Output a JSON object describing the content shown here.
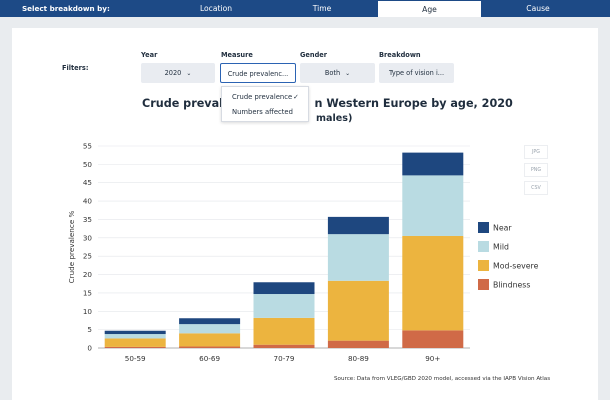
{
  "topbar": {
    "label": "Select breakdown by:",
    "tabs": [
      {
        "label": "Location",
        "active": false
      },
      {
        "label": "Time",
        "active": false
      },
      {
        "label": "Age",
        "active": true
      },
      {
        "label": "Cause",
        "active": false
      }
    ]
  },
  "filters": {
    "label": "Filters:",
    "year": {
      "label": "Year",
      "value": "2020"
    },
    "measure": {
      "label": "Measure",
      "value": "Crude prevalenc..."
    },
    "gender": {
      "label": "Gender",
      "value": "Both"
    },
    "breakdown": {
      "label": "Breakdown",
      "value": "Type of vision i..."
    }
  },
  "measure_dropdown": {
    "options": [
      "Crude prevalence",
      "Numbers affected"
    ],
    "selected": "Crude prevalence",
    "check_glyph": "✓"
  },
  "chart_title_line1_visible": "Crude prevalen",
  "chart_title_line1_tail": "n Western Europe by age, 2020",
  "chart_title_line2_tail": "males)",
  "export_buttons": [
    "JPG",
    "PNG",
    "CSV"
  ],
  "colors": {
    "Near": "#1e477f",
    "Mild": "#b9dbe2",
    "Mod-severe": "#ecb43f",
    "Blindness": "#d06a47",
    "topbar": "#1d4a86"
  },
  "source_text": "Source: Data from VLEG/GBD 2020 model, accessed via the IAPB Vision Atlas",
  "chart_data": {
    "type": "bar",
    "stacked": true,
    "categories": [
      "50-59",
      "60-69",
      "70-79",
      "80-89",
      "90+"
    ],
    "series": [
      {
        "name": "Blindness",
        "values": [
          0.3,
          0.4,
          0.9,
          2.0,
          4.8
        ]
      },
      {
        "name": "Mod-severe",
        "values": [
          2.3,
          3.6,
          7.3,
          16.3,
          25.7
        ]
      },
      {
        "name": "Mild",
        "values": [
          1.2,
          2.5,
          6.5,
          12.7,
          16.5
        ]
      },
      {
        "name": "Near",
        "values": [
          0.9,
          1.6,
          3.2,
          4.7,
          6.2
        ]
      }
    ],
    "ylabel": "Crude prevalence %",
    "ylim": [
      0,
      55
    ],
    "yticks": [
      0,
      5,
      10,
      15,
      20,
      25,
      30,
      35,
      40,
      45,
      50,
      55
    ],
    "legend_order": [
      "Near",
      "Mild",
      "Mod-severe",
      "Blindness"
    ],
    "legend_position": "right",
    "grid": true
  }
}
